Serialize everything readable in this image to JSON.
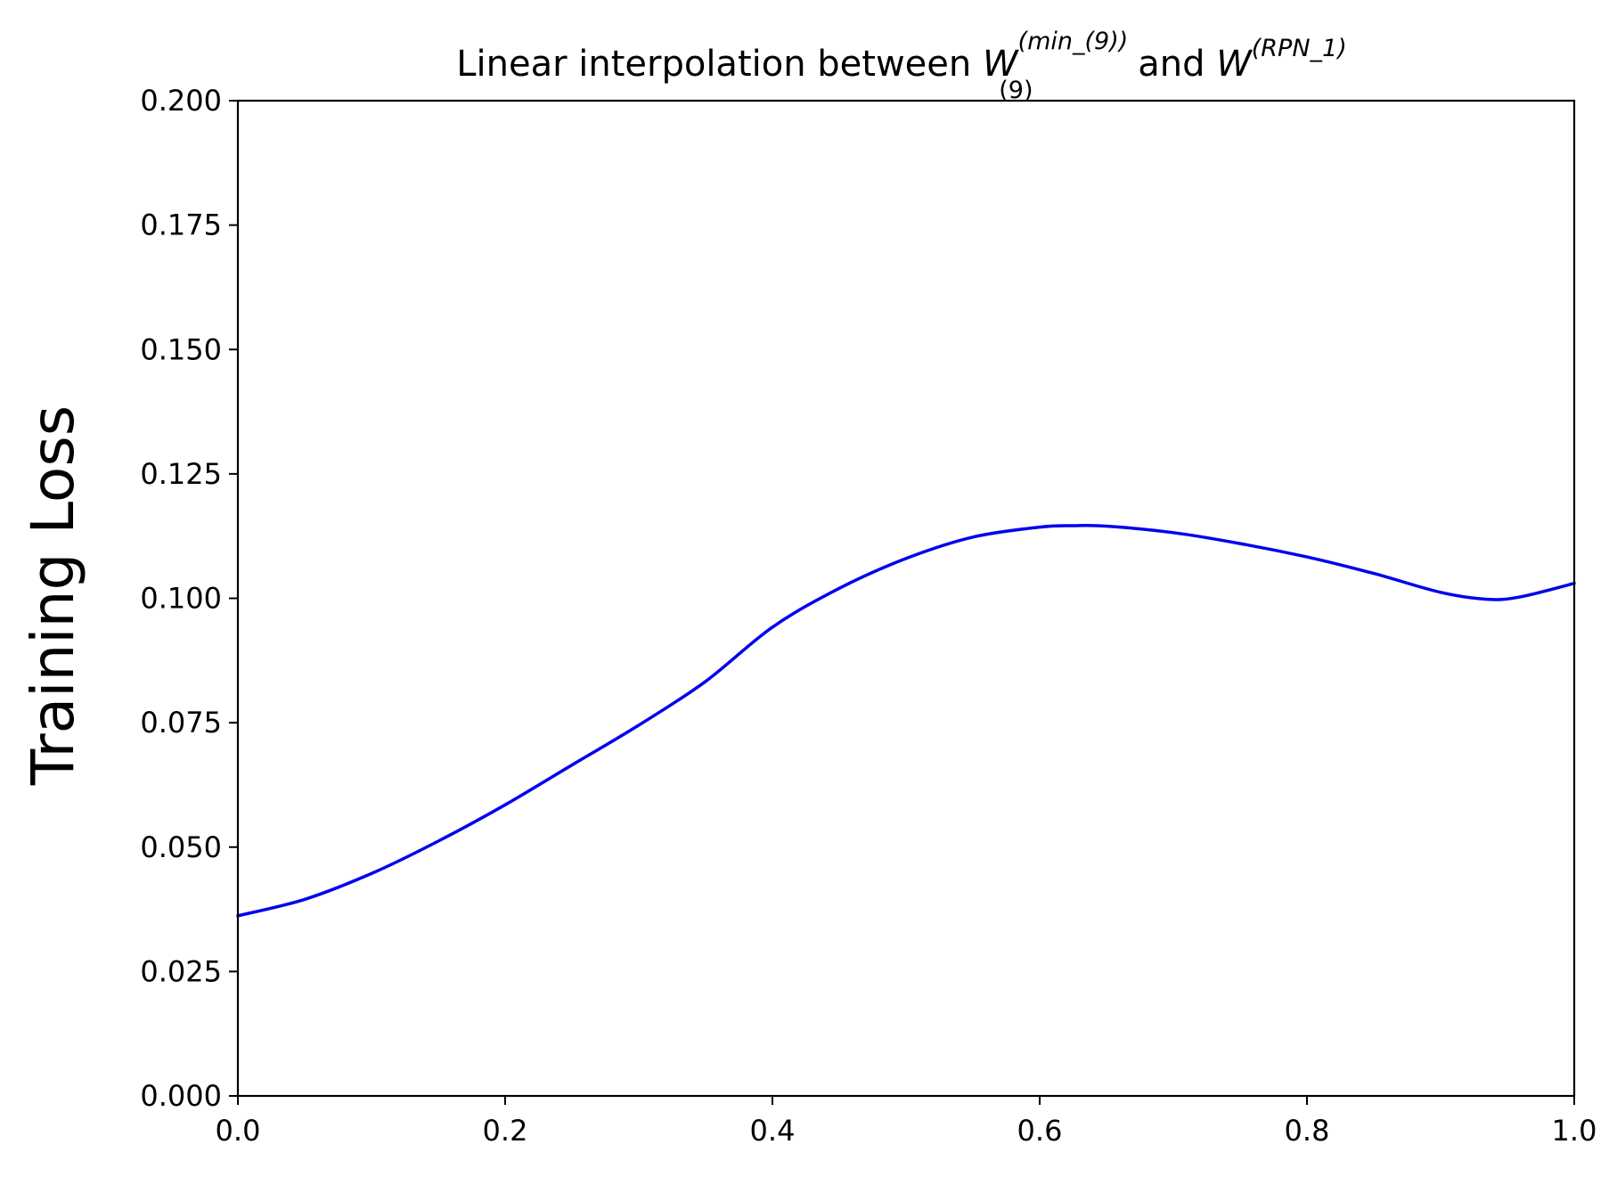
{
  "chart_data": {
    "type": "line",
    "title": {
      "prefix": "Linear interpolation between ",
      "w1_symbol": "W",
      "w1_superscript": "(min_(9))",
      "w1_subscript": "(9)",
      "connector": " and ",
      "w2_symbol": "W",
      "w2_superscript": "(RPN_1)"
    },
    "xlabel": "",
    "ylabel": "Training Loss",
    "xlim": [
      0.0,
      1.0
    ],
    "ylim": [
      0.0,
      0.2
    ],
    "x_ticks": [
      "0.0",
      "0.2",
      "0.4",
      "0.6",
      "0.8",
      "1.0"
    ],
    "y_ticks": [
      "0.000",
      "0.025",
      "0.050",
      "0.075",
      "0.100",
      "0.125",
      "0.150",
      "0.175",
      "0.200"
    ],
    "grid": false,
    "legend": "none",
    "series": [
      {
        "color": "#0000ee",
        "x": [
          0.0,
          0.05,
          0.1,
          0.15,
          0.2,
          0.25,
          0.3,
          0.35,
          0.4,
          0.45,
          0.5,
          0.55,
          0.6,
          0.625,
          0.65,
          0.7,
          0.75,
          0.8,
          0.85,
          0.9,
          0.935,
          0.96,
          1.0
        ],
        "y": [
          0.0362,
          0.0395,
          0.0447,
          0.0512,
          0.0585,
          0.0665,
          0.0745,
          0.0833,
          0.0942,
          0.102,
          0.108,
          0.1123,
          0.1143,
          0.1146,
          0.1145,
          0.1132,
          0.111,
          0.1083,
          0.105,
          0.1012,
          0.0998,
          0.1003,
          0.103
        ]
      }
    ]
  }
}
